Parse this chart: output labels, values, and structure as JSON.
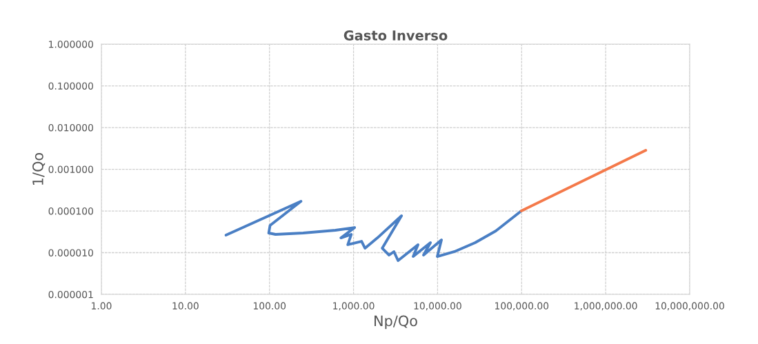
{
  "chart_data": {
    "type": "line",
    "title": "Gasto Inverso",
    "xlabel": "Np/Qo",
    "ylabel": "1/Qo",
    "log": "xy",
    "grid": true,
    "marker": "none",
    "line_style": "solid",
    "xlim": [
      1,
      10000000
    ],
    "ylim": [
      1e-06,
      1
    ],
    "xticks": [
      {
        "value": 1,
        "label": "1.00"
      },
      {
        "value": 10,
        "label": "10.00"
      },
      {
        "value": 100,
        "label": "100.00"
      },
      {
        "value": 1000,
        "label": "1,000.00"
      },
      {
        "value": 10000,
        "label": "10,000.00"
      },
      {
        "value": 100000,
        "label": "100,000.00"
      },
      {
        "value": 1000000,
        "label": "1,000,000.00"
      },
      {
        "value": 10000000,
        "label": "10,000,000.00"
      }
    ],
    "yticks": [
      {
        "value": 1e-06,
        "label": "0.000001"
      },
      {
        "value": 1e-05,
        "label": "0.000010"
      },
      {
        "value": 0.0001,
        "label": "0.000100"
      },
      {
        "value": 0.001,
        "label": "0.001000"
      },
      {
        "value": 0.01,
        "label": "0.010000"
      },
      {
        "value": 0.1,
        "label": "0.100000"
      },
      {
        "value": 1,
        "label": "1.000000"
      }
    ],
    "series": [
      {
        "color": "#4a7fc4",
        "x": [
          30.4,
          237,
          101.6,
          98,
          118,
          251,
          609,
          1030,
          708,
          940,
          855,
          1247,
          1371,
          1923,
          3724,
          2197,
          2650,
          3025,
          3388,
          5848,
          5130,
          8222,
          6810,
          11120,
          9930,
          15900,
          28000,
          49300,
          99000
        ],
        "values": [
          2.63e-05,
          0.00017,
          4.5e-05,
          2.96e-05,
          2.74e-05,
          2.96e-05,
          3.44e-05,
          4e-05,
          2.26e-05,
          2.74e-05,
          1.55e-05,
          1.87e-05,
          1.28e-05,
          2.26e-05,
          7.66e-05,
          1.28e-05,
          8.75e-06,
          1.06e-05,
          6.46e-06,
          1.55e-05,
          8.11e-06,
          1.74e-05,
          8.75e-06,
          2.02e-05,
          8.11e-06,
          1.06e-05,
          1.74e-05,
          3.32e-05,
          0.0001
        ]
      },
      {
        "color": "#f4794a",
        "x": [
          99000,
          3000000
        ],
        "values": [
          0.0001,
          0.00285
        ]
      }
    ]
  }
}
